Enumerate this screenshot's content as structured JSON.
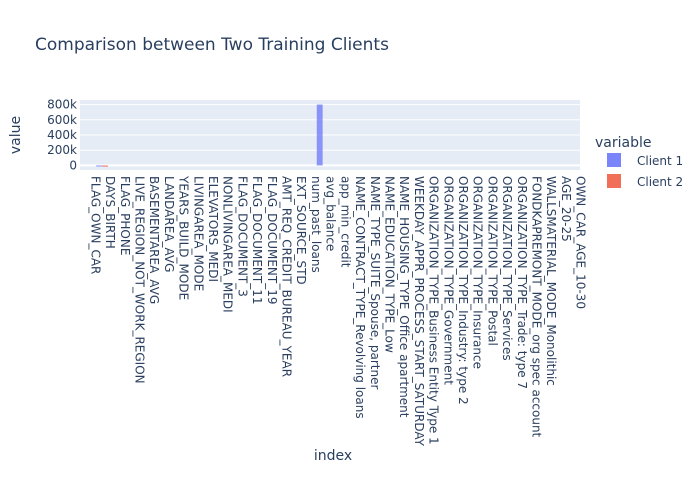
{
  "chart_data": {
    "type": "bar",
    "title": "Comparison between Two Training Clients",
    "xlabel": "index",
    "ylabel": "value",
    "ylim": [
      -60000,
      860000
    ],
    "yticks": [
      0,
      200000,
      400000,
      600000,
      800000
    ],
    "ytick_labels": [
      "0",
      "200k",
      "400k",
      "600k",
      "800k"
    ],
    "grid": true,
    "legend_title": "variable",
    "legend_position": "right",
    "categories": [
      "FLAG_OWN_CAR",
      "DAYS_BIRTH",
      "FLAG_PHONE",
      "LIVE_REGION_NOT_WORK_REGION",
      "BASEMENTAREA_AVG",
      "LANDAREA_AVG",
      "YEARS_BUILD_MODE",
      "LIVINGAREA_MODE",
      "ELEVATORS_MEDI",
      "NONLIVINGAREA_MEDI",
      "FLAG_DOCUMENT_3",
      "FLAG_DOCUMENT_11",
      "FLAG_DOCUMENT_19",
      "AMT_REQ_CREDIT_BUREAU_YEAR",
      "EXT_SOURCE_STD",
      "num_past_loans",
      "avg_balance",
      "app_min_credit",
      "NAME_CONTRACT_TYPE_Revolving loans",
      "NAME_TYPE_SUITE_Spouse, partner",
      "NAME_EDUCATION_TYPE_Low",
      "NAME_HOUSING_TYPE_Office apartment",
      "WEEKDAY_APPR_PROCESS_START_SATURDAY",
      "ORGANIZATION_TYPE_Business Entity Type 1",
      "ORGANIZATION_TYPE_Government",
      "ORGANIZATION_TYPE_Industry: type 2",
      "ORGANIZATION_TYPE_Insurance",
      "ORGANIZATION_TYPE_Postal",
      "ORGANIZATION_TYPE_Services",
      "ORGANIZATION_TYPE_Trade: type 7",
      "FONDKAPREMONT_MODE_org spec account",
      "WALLSMATERIAL_MODE_Monolithic",
      "AGE_20-25",
      "OWN_CAR_AGE_10-30"
    ],
    "series": [
      {
        "name": "Client 1",
        "color": "#636efa",
        "values": [
          0,
          -14000,
          1,
          0,
          0.09,
          0.04,
          0.6,
          0.1,
          0.1,
          0,
          1,
          0,
          0,
          1,
          0.2,
          1,
          800000,
          0,
          0,
          0,
          0,
          0,
          0,
          0,
          0,
          0,
          0,
          0,
          0,
          0,
          0,
          0,
          0,
          0
        ]
      },
      {
        "name": "Client 2",
        "color": "#ef553b",
        "values": [
          0,
          -16000,
          0,
          0,
          0.08,
          0.03,
          0.6,
          0.1,
          0.1,
          0,
          1,
          0,
          0,
          2,
          0.2,
          2,
          0,
          0,
          0,
          0,
          0,
          0,
          0,
          0,
          0,
          0,
          0,
          0,
          0,
          0,
          0,
          0,
          0,
          0
        ]
      }
    ]
  }
}
